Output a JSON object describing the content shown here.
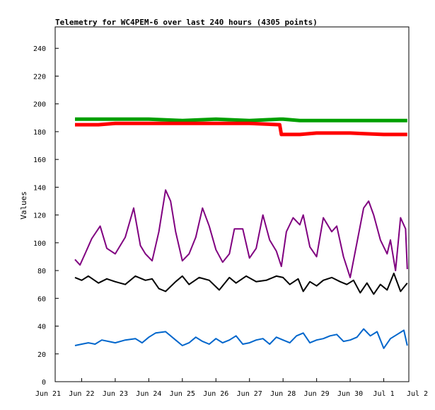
{
  "chart_data": {
    "type": "line",
    "title": "Telemetry for WC4PEM-6 over last 240 hours (4305 points)",
    "xlabel": "",
    "ylabel": "Values",
    "ylim": [
      0,
      260
    ],
    "yticks": [
      0,
      20,
      40,
      60,
      80,
      100,
      120,
      140,
      160,
      180,
      200,
      220,
      240
    ],
    "xticks": [
      "Jun 21",
      "Jun 22",
      "Jun 23",
      "Jun 24",
      "Jun 25",
      "Jun 26",
      "Jun 27",
      "Jun 28",
      "Jun 29",
      "Jun 30",
      "Jul 1",
      "Jul 2"
    ],
    "xlim_days": [
      0,
      11
    ],
    "grid": false,
    "legend": "none",
    "series": [
      {
        "color": "#00a000",
        "x": [
          0.8,
          1.5,
          2.0,
          3.0,
          4.0,
          5.0,
          6.0,
          6.9,
          7.0,
          7.5,
          8.0,
          9.0,
          10.0,
          10.7
        ],
        "values": [
          189,
          189,
          189,
          189,
          188,
          189,
          188,
          189,
          189,
          188,
          188,
          188,
          188,
          188
        ]
      },
      {
        "color": "#ff0000",
        "x": [
          0.8,
          1.5,
          2.0,
          3.0,
          4.0,
          5.0,
          6.0,
          6.9,
          6.95,
          7.5,
          8.0,
          9.0,
          10.0,
          10.7
        ],
        "values": [
          185,
          185,
          186,
          186,
          186,
          186,
          186,
          185,
          178,
          178,
          179,
          179,
          178,
          178
        ]
      },
      {
        "color": "#800080",
        "x": [
          0.8,
          0.95,
          1.1,
          1.3,
          1.55,
          1.75,
          2.0,
          2.3,
          2.55,
          2.75,
          2.9,
          3.1,
          3.3,
          3.5,
          3.65,
          3.8,
          4.0,
          4.2,
          4.4,
          4.6,
          4.8,
          5.0,
          5.2,
          5.4,
          5.55,
          5.8,
          6.0,
          6.2,
          6.4,
          6.6,
          6.8,
          6.95,
          7.1,
          7.3,
          7.5,
          7.6,
          7.8,
          8.0,
          8.2,
          8.45,
          8.6,
          8.8,
          9.0,
          9.2,
          9.4,
          9.55,
          9.7,
          9.9,
          10.1,
          10.2,
          10.35,
          10.5,
          10.65,
          10.7
        ],
        "values": [
          88,
          84,
          92,
          103,
          112,
          96,
          92,
          104,
          125,
          98,
          92,
          87,
          108,
          138,
          130,
          108,
          87,
          92,
          104,
          125,
          112,
          95,
          86,
          92,
          110,
          110,
          89,
          96,
          120,
          102,
          94,
          83,
          108,
          118,
          113,
          120,
          97,
          90,
          118,
          108,
          112,
          90,
          75,
          100,
          125,
          130,
          120,
          102,
          92,
          102,
          80,
          118,
          110,
          81
        ]
      },
      {
        "color": "#000000",
        "x": [
          0.8,
          1.0,
          1.2,
          1.5,
          1.75,
          2.0,
          2.3,
          2.6,
          2.9,
          3.1,
          3.3,
          3.5,
          3.8,
          4.0,
          4.2,
          4.5,
          4.8,
          5.1,
          5.4,
          5.6,
          5.9,
          6.2,
          6.5,
          6.8,
          7.0,
          7.2,
          7.45,
          7.6,
          7.8,
          8.0,
          8.2,
          8.45,
          8.7,
          8.9,
          9.1,
          9.3,
          9.5,
          9.7,
          9.9,
          10.1,
          10.3,
          10.5,
          10.7
        ],
        "values": [
          75,
          73,
          76,
          71,
          74,
          72,
          70,
          76,
          73,
          74,
          67,
          65,
          72,
          76,
          70,
          75,
          73,
          66,
          75,
          71,
          76,
          72,
          73,
          76,
          75,
          70,
          74,
          65,
          72,
          69,
          73,
          75,
          72,
          70,
          73,
          64,
          71,
          63,
          70,
          66,
          78,
          65,
          71
        ]
      },
      {
        "color": "#0066cc",
        "x": [
          0.8,
          1.0,
          1.2,
          1.4,
          1.6,
          1.8,
          2.0,
          2.3,
          2.6,
          2.8,
          3.0,
          3.2,
          3.5,
          3.8,
          4.0,
          4.2,
          4.4,
          4.6,
          4.8,
          5.0,
          5.2,
          5.4,
          5.6,
          5.8,
          6.0,
          6.2,
          6.4,
          6.6,
          6.8,
          7.0,
          7.2,
          7.4,
          7.6,
          7.8,
          8.0,
          8.2,
          8.4,
          8.6,
          8.8,
          9.0,
          9.2,
          9.4,
          9.6,
          9.8,
          10.0,
          10.2,
          10.4,
          10.6,
          10.7
        ],
        "values": [
          26,
          27,
          28,
          27,
          30,
          29,
          28,
          30,
          31,
          28,
          32,
          35,
          36,
          30,
          26,
          28,
          32,
          29,
          27,
          31,
          28,
          30,
          33,
          27,
          28,
          30,
          31,
          27,
          32,
          30,
          28,
          33,
          35,
          28,
          30,
          31,
          33,
          34,
          29,
          30,
          32,
          38,
          33,
          36,
          24,
          31,
          34,
          37,
          26
        ]
      }
    ]
  }
}
